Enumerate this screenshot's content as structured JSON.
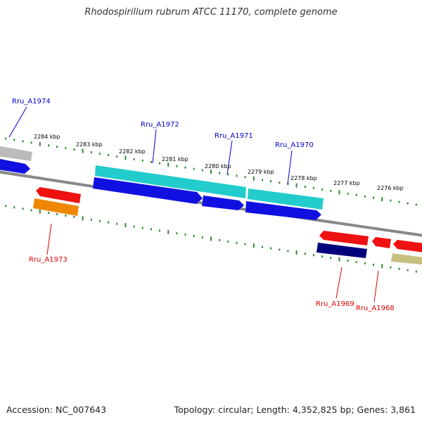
{
  "title": "Rhodospirillum rubrum ATCC 11170, complete genome",
  "footer": {
    "accession": "Accession: NC_007643",
    "summary": "Topology: circular; Length: 4,352,825 bp; Genes: 3,861"
  },
  "ticks": {
    "labels": [
      "2284 kbp",
      "2283 kbp",
      "2282 kbp",
      "2281 kbp",
      "2280 kbp",
      "2279 kbp",
      "2278 kbp",
      "2277 kbp",
      "2276 kbp"
    ]
  },
  "gene_labels": {
    "forward": [
      "Rru_A1974",
      "Rru_A1972",
      "Rru_A1971",
      "Rru_A1970"
    ],
    "reverse": [
      "Rru_A1973",
      "Rru_A1969",
      "Rru_A1968"
    ]
  },
  "colors": {
    "forward_label": "#0000cc",
    "reverse_label": "#dd0000",
    "tick": "#2e8b2e",
    "backbone": "#888888",
    "cds_blue": "#1010e0",
    "cds_cyan": "#22cccc",
    "cds_red": "#ee1111",
    "cds_orange": "#ee8800",
    "cds_navy": "#00007a",
    "cds_olive": "#c8c080",
    "cds_grey": "#bbbbbb"
  }
}
